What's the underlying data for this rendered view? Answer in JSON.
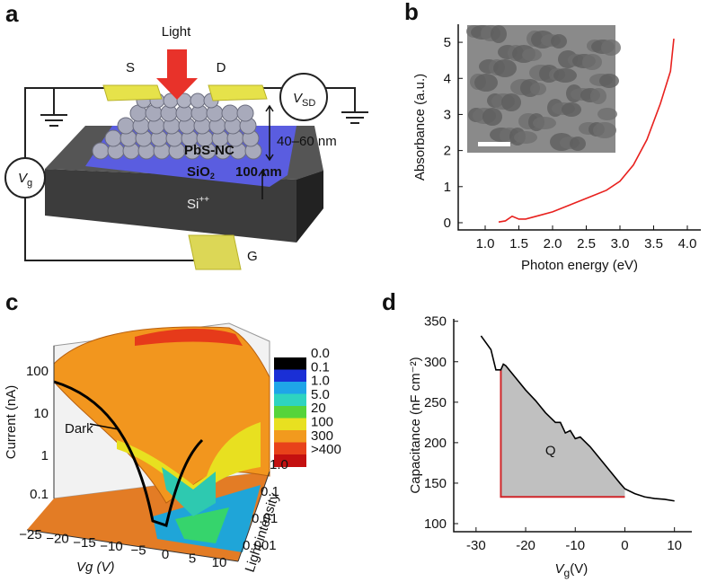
{
  "panel_a": {
    "label": "a",
    "light": "Light",
    "source": "S",
    "drain": "D",
    "vsd": {
      "main": "V",
      "sub": "SD"
    },
    "nc": "PbS-NC",
    "oxide": {
      "main": "SiO",
      "sub": "2"
    },
    "oxide_thickness": "100 nm",
    "nc_thickness": "40–60 nm",
    "vg": {
      "main": "V",
      "sub": "g"
    },
    "substrate": {
      "main": "Si",
      "sup": "++"
    },
    "gate": "G"
  },
  "panel_c": {
    "label": "c",
    "z_label": "Current (nA)",
    "z_ticks": [
      "0.1",
      "1",
      "10",
      "100"
    ],
    "dark": "Dark",
    "x_label": "Vg (V)",
    "x_ticks": [
      "−25",
      "−20",
      "−15",
      "−10",
      "−5",
      "0",
      "5",
      "10"
    ],
    "y_label": "Light intensity",
    "y_ticks": [
      "0.001",
      "0.01",
      "0.1",
      "1.0"
    ],
    "colorbar": [
      "0.0",
      "0.1",
      "1.0",
      "5.0",
      "20",
      "100",
      "300",
      ">400"
    ]
  },
  "chart_data": [
    {
      "type": "line",
      "panel": "b",
      "x_label": "Photon energy (eV)",
      "y_label": "Absorbance (a.u.)",
      "x": [
        1.2,
        1.3,
        1.4,
        1.5,
        1.6,
        1.8,
        2.0,
        2.2,
        2.4,
        2.6,
        2.8,
        3.0,
        3.2,
        3.4,
        3.6,
        3.75,
        3.8
      ],
      "series": [
        {
          "color": "#e8211e",
          "values": [
            0.02,
            0.05,
            0.18,
            0.1,
            0.1,
            0.2,
            0.3,
            0.45,
            0.6,
            0.75,
            0.9,
            1.15,
            1.6,
            2.3,
            3.3,
            4.2,
            5.1
          ]
        }
      ],
      "xlim": [
        0.6,
        4.2
      ],
      "ylim": [
        -0.2,
        5.5
      ],
      "xticks": [
        {
          "value": 1,
          "label": "1.0"
        },
        {
          "value": 1.5,
          "label": "1.5"
        },
        {
          "value": 2,
          "label": "2.0"
        },
        {
          "value": 2.5,
          "label": "2.5"
        },
        {
          "value": 3,
          "label": "3.0"
        },
        {
          "value": 3.5,
          "label": "3.5"
        },
        {
          "value": 4,
          "label": "4.0"
        }
      ],
      "yticks": [
        0,
        1,
        2,
        3,
        4,
        5
      ]
    },
    {
      "type": "line",
      "panel": "d",
      "x_label": {
        "main": "V",
        "sub": "g",
        "unit": "(V)"
      },
      "y_label": "Capacitance (nF cm⁻²)",
      "x": [
        -29,
        -27,
        -26,
        -25,
        -24.5,
        -24,
        -22,
        -20,
        -18,
        -16,
        -14,
        -13,
        -12,
        -11,
        -10,
        -9,
        -7,
        -5,
        -3,
        -1,
        0,
        2,
        4,
        6,
        8,
        10
      ],
      "series": [
        {
          "color": "#000000",
          "values": [
            332,
            315,
            290,
            290,
            297,
            295,
            280,
            265,
            252,
            237,
            225,
            225,
            212,
            215,
            205,
            207,
            195,
            180,
            165,
            150,
            143,
            137,
            133,
            131,
            130,
            128
          ]
        }
      ],
      "xlim": [
        -34.5,
        13.5
      ],
      "ylim": [
        90,
        353
      ],
      "xticks": [
        -30,
        -20,
        -10,
        0,
        10
      ],
      "yticks": [
        100,
        150,
        200,
        250,
        300,
        350
      ],
      "shaded_region": {
        "x": [
          -25,
          0
        ],
        "y_base": 133,
        "color": "#c0c0c0",
        "edge_color": "#d0262a"
      },
      "annotations": [
        {
          "text": "Q",
          "x": -15,
          "y": 185
        }
      ]
    }
  ]
}
